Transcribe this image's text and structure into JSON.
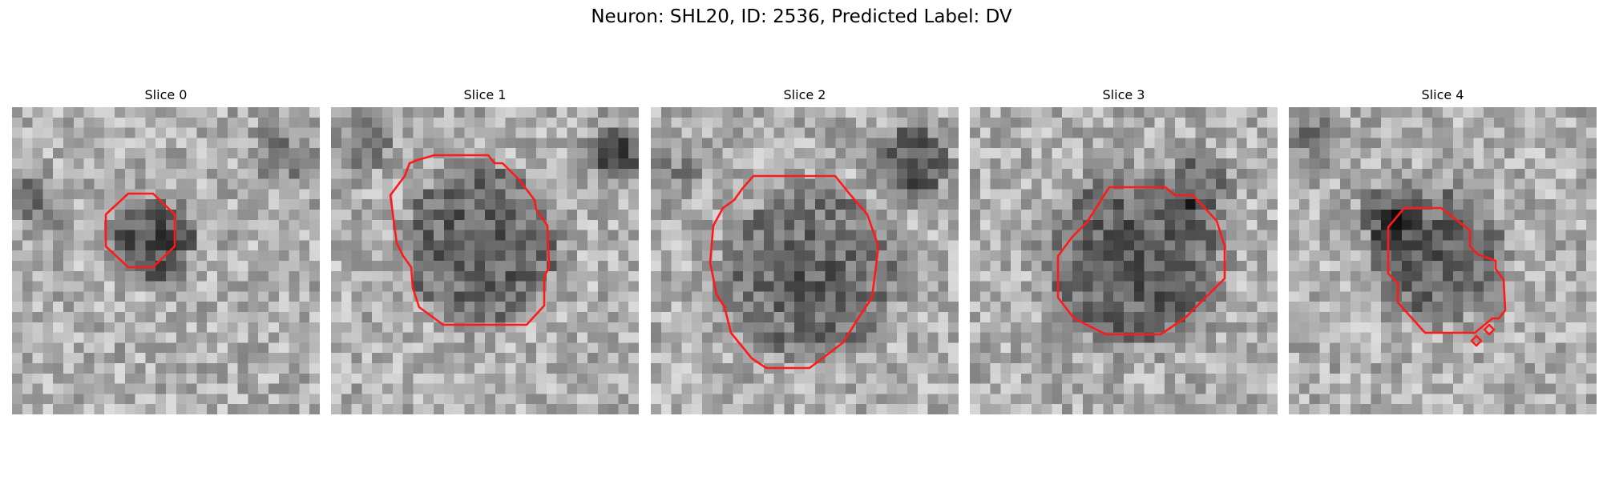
{
  "figure": {
    "title": "Neuron: SHL20, ID: 2536, Predicted Label: DV",
    "panels": [
      {
        "title": "Slice 0"
      },
      {
        "title": "Slice 1"
      },
      {
        "title": "Slice 2"
      },
      {
        "title": "Slice 3"
      },
      {
        "title": "Slice 4"
      }
    ]
  },
  "colors": {
    "contour": "#ff1a1a",
    "colormap": "gray"
  }
}
